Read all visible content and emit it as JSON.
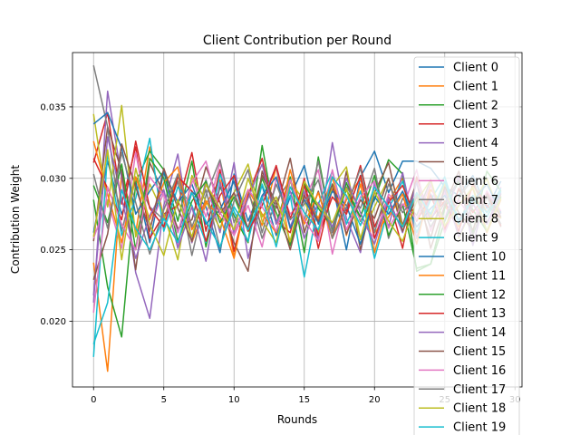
{
  "chart_data": {
    "type": "line",
    "title": "Client Contribution per Round",
    "xlabel": "Rounds",
    "ylabel": "Contribution Weight",
    "xlim": [
      -1.5,
      30.5
    ],
    "ylim": [
      0.0154,
      0.0388
    ],
    "xticks": [
      0,
      5,
      10,
      15,
      20,
      25,
      30
    ],
    "yticks": [
      0.02,
      0.025,
      0.03,
      0.035
    ],
    "xtick_labels": [
      "0",
      "5",
      "10",
      "15",
      "20",
      "25",
      "30"
    ],
    "ytick_labels": [
      "0.020",
      "0.025",
      "0.030",
      "0.035"
    ],
    "grid": true,
    "legend_position": "top-right",
    "x": [
      0,
      1,
      2,
      3,
      4,
      5,
      6,
      7,
      8,
      9,
      10,
      11,
      12,
      13,
      14,
      15,
      16,
      17,
      18,
      19,
      20,
      21,
      22,
      23,
      24,
      25,
      26,
      27,
      28,
      29
    ],
    "series": [
      {
        "name": "Client 0",
        "color": "#1f77b4",
        "values": [
          0.0262,
          0.0312,
          0.0275,
          0.0298,
          0.0255,
          0.0305,
          0.0262,
          0.0291,
          0.028,
          0.0248,
          0.0303,
          0.027,
          0.0295,
          0.026,
          0.0287,
          0.0309,
          0.0268,
          0.0296,
          0.025,
          0.0301,
          0.0319,
          0.029,
          0.0312,
          0.0312,
          0.0307,
          0.0294,
          0.0288,
          0.0302,
          0.0279,
          0.0298
        ]
      },
      {
        "name": "Client 1",
        "color": "#ff7f0e",
        "values": [
          0.0241,
          0.0165,
          0.0305,
          0.0262,
          0.0322,
          0.0271,
          0.0303,
          0.0255,
          0.0282,
          0.0299,
          0.0245,
          0.029,
          0.0267,
          0.0308,
          0.0253,
          0.0289,
          0.0272,
          0.0301,
          0.026,
          0.0296,
          0.0248,
          0.0284,
          0.03,
          0.0258,
          0.0292,
          0.0281,
          0.0266,
          0.0296,
          0.0276,
          0.0288
        ]
      },
      {
        "name": "Client 2",
        "color": "#2ca02c",
        "values": [
          0.0285,
          0.0224,
          0.0189,
          0.0297,
          0.0319,
          0.0306,
          0.027,
          0.0312,
          0.0252,
          0.0294,
          0.0274,
          0.0255,
          0.0323,
          0.0268,
          0.0301,
          0.0248,
          0.0315,
          0.0263,
          0.0297,
          0.027,
          0.0285,
          0.0313,
          0.0303,
          0.0235,
          0.024,
          0.0279,
          0.0298,
          0.0262,
          0.0305,
          0.0291
        ]
      },
      {
        "name": "Client 3",
        "color": "#d62728",
        "values": [
          0.0311,
          0.0346,
          0.0282,
          0.0322,
          0.0258,
          0.0275,
          0.0281,
          0.0318,
          0.0263,
          0.0306,
          0.0249,
          0.0288,
          0.0314,
          0.027,
          0.0262,
          0.03,
          0.0251,
          0.0293,
          0.0277,
          0.0309,
          0.0266,
          0.0287,
          0.0251,
          0.0301,
          0.0272,
          0.0284,
          0.0263,
          0.0296,
          0.0281,
          0.0272
        ]
      },
      {
        "name": "Client 4",
        "color": "#9467bd",
        "values": [
          0.0213,
          0.0361,
          0.03,
          0.0234,
          0.0202,
          0.0281,
          0.0317,
          0.0255,
          0.0299,
          0.0262,
          0.0311,
          0.0244,
          0.0286,
          0.0308,
          0.0266,
          0.0291,
          0.0257,
          0.0325,
          0.0272,
          0.0248,
          0.0297,
          0.0266,
          0.0304,
          0.0258,
          0.0289,
          0.0271,
          0.0302,
          0.0253,
          0.0291,
          0.0275
        ]
      },
      {
        "name": "Client 5",
        "color": "#8c564b",
        "values": [
          0.0256,
          0.0336,
          0.0305,
          0.0236,
          0.0311,
          0.0289,
          0.0265,
          0.0271,
          0.0308,
          0.0283,
          0.0255,
          0.0235,
          0.0305,
          0.0279,
          0.0314,
          0.0262,
          0.0291,
          0.0258,
          0.0305,
          0.025,
          0.029,
          0.0311,
          0.0267,
          0.0298,
          0.0251,
          0.0281,
          0.0305,
          0.027,
          0.0289,
          0.0266
        ]
      },
      {
        "name": "Client 6",
        "color": "#e377c2",
        "values": [
          0.0258,
          0.0285,
          0.0251,
          0.0318,
          0.0266,
          0.029,
          0.0252,
          0.0301,
          0.0273,
          0.0311,
          0.026,
          0.0281,
          0.0252,
          0.03,
          0.0275,
          0.0285,
          0.0306,
          0.0247,
          0.0288,
          0.0271,
          0.0258,
          0.0289,
          0.0279,
          0.0306,
          0.0263,
          0.029,
          0.027,
          0.0283,
          0.0262,
          0.0294
        ]
      },
      {
        "name": "Client 7",
        "color": "#7f7f7f",
        "values": [
          0.0379,
          0.0336,
          0.0263,
          0.0301,
          0.028,
          0.0271,
          0.0298,
          0.0246,
          0.0288,
          0.0313,
          0.0269,
          0.0292,
          0.0258,
          0.0284,
          0.0299,
          0.027,
          0.0312,
          0.0262,
          0.0294,
          0.0279,
          0.0307,
          0.0258,
          0.0286,
          0.0274,
          0.0299,
          0.0262,
          0.0286,
          0.03,
          0.0269,
          0.0289
        ]
      },
      {
        "name": "Client 8",
        "color": "#bcbd22",
        "values": [
          0.0345,
          0.028,
          0.0351,
          0.0259,
          0.0296,
          0.0275,
          0.0243,
          0.0302,
          0.0284,
          0.0265,
          0.029,
          0.031,
          0.027,
          0.0255,
          0.0298,
          0.0284,
          0.0262,
          0.0294,
          0.0308,
          0.0257,
          0.028,
          0.03,
          0.0266,
          0.0289,
          0.0273,
          0.0296,
          0.0258,
          0.0281,
          0.03,
          0.0272
        ]
      },
      {
        "name": "Client 9",
        "color": "#17becf",
        "values": [
          0.0175,
          0.0318,
          0.026,
          0.0286,
          0.0328,
          0.0263,
          0.0294,
          0.0281,
          0.0255,
          0.0303,
          0.0277,
          0.0256,
          0.0296,
          0.0269,
          0.0288,
          0.0231,
          0.0282,
          0.0305,
          0.0268,
          0.0291,
          0.0244,
          0.0279,
          0.0298,
          0.0262,
          0.0285,
          0.0301,
          0.027,
          0.0288,
          0.0276,
          0.0293
        ]
      },
      {
        "name": "Client 10",
        "color": "#1f77b4",
        "values": [
          0.0338,
          0.0346,
          0.0321,
          0.0275,
          0.0291,
          0.0305,
          0.0283,
          0.0296,
          0.0268,
          0.0278,
          0.0298,
          0.0263,
          0.0288,
          0.0301,
          0.0265,
          0.0285,
          0.0269,
          0.0291,
          0.0281,
          0.0254,
          0.0287,
          0.0275,
          0.0291,
          0.0266,
          0.0279,
          0.0288,
          0.0271,
          0.0284,
          0.0296,
          0.0276
        ]
      },
      {
        "name": "Client 11",
        "color": "#ff7f0e",
        "values": [
          0.0326,
          0.0289,
          0.0255,
          0.0301,
          0.0271,
          0.0297,
          0.0308,
          0.0264,
          0.0284,
          0.0273,
          0.0244,
          0.0292,
          0.0275,
          0.0262,
          0.0306,
          0.0268,
          0.029,
          0.0258,
          0.0285,
          0.03,
          0.0262,
          0.0273,
          0.0289,
          0.0254,
          0.0296,
          0.0266,
          0.0281,
          0.0293,
          0.0262,
          0.0285
        ]
      },
      {
        "name": "Client 12",
        "color": "#2ca02c",
        "values": [
          0.0295,
          0.0269,
          0.031,
          0.025,
          0.0314,
          0.03,
          0.0256,
          0.0284,
          0.0298,
          0.0269,
          0.0287,
          0.0263,
          0.03,
          0.0276,
          0.0253,
          0.0296,
          0.0279,
          0.0266,
          0.0292,
          0.0273,
          0.0302,
          0.026,
          0.0282,
          0.0237,
          0.024,
          0.027,
          0.0292,
          0.0278,
          0.0263,
          0.0287
        ]
      },
      {
        "name": "Client 13",
        "color": "#d62728",
        "values": [
          0.0314,
          0.0293,
          0.0271,
          0.0326,
          0.0279,
          0.0266,
          0.0301,
          0.0291,
          0.0256,
          0.0288,
          0.0302,
          0.0263,
          0.0281,
          0.0309,
          0.0272,
          0.0295,
          0.026,
          0.0287,
          0.0275,
          0.0302,
          0.0258,
          0.0283,
          0.0295,
          0.027,
          0.0288,
          0.0264,
          0.0293,
          0.0276,
          0.029,
          0.0267
        ]
      },
      {
        "name": "Client 14",
        "color": "#9467bd",
        "values": [
          0.0218,
          0.0329,
          0.0286,
          0.0244,
          0.0274,
          0.0292,
          0.0251,
          0.028,
          0.0242,
          0.0297,
          0.0262,
          0.0286,
          0.031,
          0.0268,
          0.0291,
          0.0258,
          0.0283,
          0.0266,
          0.03,
          0.0276,
          0.0254,
          0.0286,
          0.0262,
          0.0297,
          0.027,
          0.0292,
          0.0259,
          0.0282,
          0.0268,
          0.029
        ]
      },
      {
        "name": "Client 15",
        "color": "#8c564b",
        "values": [
          0.0229,
          0.0261,
          0.0324,
          0.0294,
          0.0263,
          0.0307,
          0.0279,
          0.0256,
          0.0296,
          0.0275,
          0.029,
          0.0265,
          0.0302,
          0.0283,
          0.025,
          0.0288,
          0.027,
          0.0296,
          0.0261,
          0.0285,
          0.0272,
          0.03,
          0.0263,
          0.0287,
          0.0258,
          0.0294,
          0.0276,
          0.0264,
          0.0289,
          0.0273
        ]
      },
      {
        "name": "Client 16",
        "color": "#e377c2",
        "values": [
          0.0206,
          0.0294,
          0.0268,
          0.025,
          0.0301,
          0.0288,
          0.0262,
          0.0297,
          0.0312,
          0.0276,
          0.026,
          0.0292,
          0.028,
          0.0263,
          0.0299,
          0.0271,
          0.0256,
          0.0306,
          0.0264,
          0.0287,
          0.0298,
          0.0265,
          0.0282,
          0.0271,
          0.0296,
          0.0262,
          0.0285,
          0.027,
          0.0291,
          0.0277
        ]
      },
      {
        "name": "Client 17",
        "color": "#7f7f7f",
        "values": [
          0.0303,
          0.0265,
          0.0318,
          0.0283,
          0.0247,
          0.0278,
          0.0303,
          0.0266,
          0.0292,
          0.0251,
          0.0284,
          0.0306,
          0.0262,
          0.0296,
          0.0271,
          0.0282,
          0.0299,
          0.0258,
          0.028,
          0.0307,
          0.0262,
          0.0296,
          0.0276,
          0.0288,
          0.0266,
          0.0283,
          0.0299,
          0.026,
          0.0287,
          0.0268
        ]
      },
      {
        "name": "Client 18",
        "color": "#bcbd22",
        "values": [
          0.0259,
          0.032,
          0.0243,
          0.0307,
          0.0268,
          0.0246,
          0.0285,
          0.0259,
          0.0296,
          0.0279,
          0.0264,
          0.03,
          0.0273,
          0.0287,
          0.0256,
          0.0298,
          0.0281,
          0.0269,
          0.0293,
          0.0258,
          0.0291,
          0.027,
          0.0256,
          0.0284,
          0.0299,
          0.0267,
          0.0281,
          0.0294,
          0.0263,
          0.0286
        ]
      },
      {
        "name": "Client 19",
        "color": "#17becf",
        "values": [
          0.0184,
          0.0213,
          0.0292,
          0.0265,
          0.025,
          0.0272,
          0.0255,
          0.029,
          0.027,
          0.0252,
          0.028,
          0.0264,
          0.0287,
          0.0252,
          0.0294,
          0.0276,
          0.0264,
          0.0301,
          0.0288,
          0.0267,
          0.0294,
          0.028,
          0.0266,
          0.029,
          0.0275,
          0.0298,
          0.0268,
          0.0286,
          0.0273,
          0.0291
        ]
      }
    ]
  }
}
